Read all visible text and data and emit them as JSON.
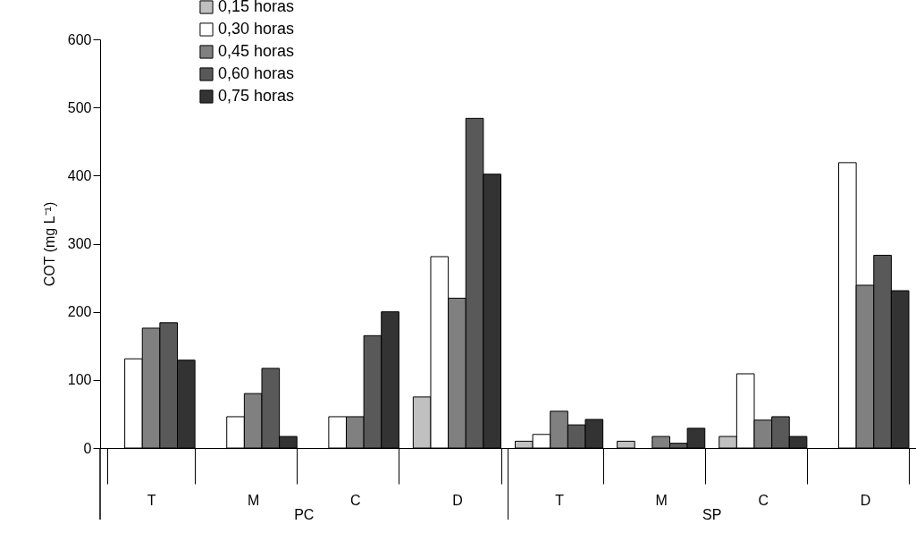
{
  "chart_data": {
    "type": "bar",
    "ylabel": "COT (mg L⁻¹)",
    "categories": [
      "T",
      "M",
      "C",
      "D",
      "T",
      "M",
      "C",
      "D"
    ],
    "series": [
      {
        "name": "0,15 horas",
        "color": "#c0c0c0",
        "values": [
          null,
          null,
          null,
          75,
          10,
          10,
          17,
          null
        ]
      },
      {
        "name": "0,30 horas",
        "color": "#ffffff",
        "values": [
          131,
          46,
          46,
          281,
          20,
          null,
          109,
          419
        ]
      },
      {
        "name": "0,45 horas",
        "color": "#808080",
        "values": [
          176,
          80,
          46,
          220,
          54,
          17,
          41,
          239
        ]
      },
      {
        "name": "0,60 horas",
        "color": "#595959",
        "values": [
          184,
          117,
          165,
          484,
          34,
          7,
          46,
          283
        ]
      },
      {
        "name": "0,75 horas",
        "color": "#333333",
        "values": [
          129,
          17,
          200,
          402,
          42,
          29,
          17,
          231
        ]
      }
    ],
    "annotations": [
      "PC",
      "SP"
    ],
    "ylim": [
      0,
      600
    ],
    "yticks": [
      0,
      100,
      200,
      300,
      400,
      500,
      600
    ],
    "grid": false,
    "legend": "top left"
  }
}
